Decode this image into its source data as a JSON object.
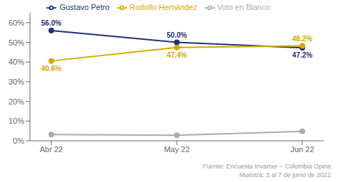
{
  "chart_data": {
    "type": "line",
    "categories": [
      "Abr 22",
      "May 22",
      "Jun 22"
    ],
    "series": [
      {
        "name": "Gustavo Petro",
        "color": "#1f3278",
        "marker": "circle",
        "line_style": "solid",
        "values": [
          56.0,
          50.0,
          47.2
        ],
        "value_labels": [
          "56.0%",
          "50.0%",
          "47.2%"
        ]
      },
      {
        "name": "Rodolfo Hernández",
        "color": "#d4a800",
        "marker": "circle",
        "line_style": "solid",
        "values": [
          40.6,
          47.4,
          48.2
        ],
        "value_labels": [
          "40.6%",
          "47.4%",
          "48.2%"
        ]
      },
      {
        "name": "Voto en Blanco",
        "color": "#aaaaaa",
        "marker": "circle",
        "line_style": "solid",
        "values": [
          3.2,
          2.8,
          4.8
        ]
      }
    ],
    "ylim": [
      0,
      65
    ],
    "yticks": [
      {
        "value": 0,
        "label": "0%"
      },
      {
        "value": 10,
        "label": "10%"
      },
      {
        "value": 20,
        "label": "20%"
      },
      {
        "value": 30,
        "label": "30%"
      },
      {
        "value": 40,
        "label": "40%"
      },
      {
        "value": 50,
        "label": "50%"
      },
      {
        "value": 60,
        "label": "60%"
      }
    ],
    "grid": false,
    "legend": "top",
    "data_labels": true,
    "annotations": [
      "Fuente: Encuesta Invamer – Colombia Opina",
      "Muestra: 3 al 7 de junio de 2022"
    ]
  }
}
